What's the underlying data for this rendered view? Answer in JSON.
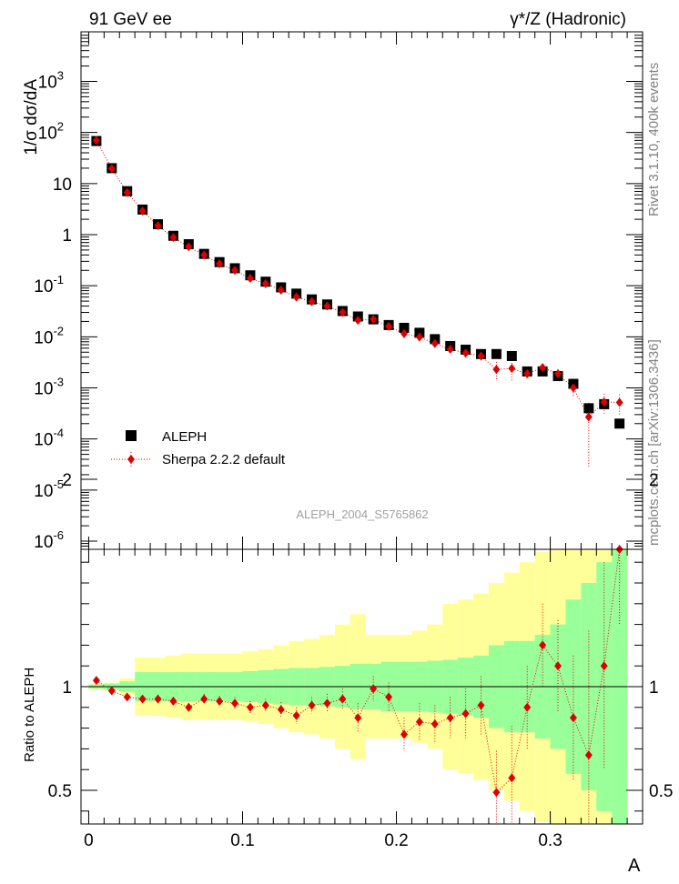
{
  "header": {
    "left": "91 GeV ee",
    "right": "γ*/Z (Hadronic)"
  },
  "side_text": {
    "top": "Rivet 3.1.10,  400k events",
    "bottom": "mcplots.cern.ch [arXiv:1306.3436]"
  },
  "watermark": "ALEPH_2004_S5765862",
  "legend": {
    "data_label": "ALEPH",
    "mc_label": "Sherpa 2.2.2 default"
  },
  "colors": {
    "data": "#000000",
    "mc": "#dd0000",
    "band_outer": "#ffff99",
    "band_inner": "#99ff99"
  },
  "chart_data": [
    {
      "type": "scatter",
      "panel": "main",
      "ylabel": "1/σ  dσ/dA",
      "yscale": "log",
      "ylim": [
        7e-07,
        10000.0
      ],
      "xlim": [
        -0.005,
        0.36
      ],
      "y_tick_labels": [
        "10^-6",
        "10^-5",
        "10^-4",
        "10^-3",
        "10^-2",
        "10^-1",
        "1",
        "10",
        "10^2",
        "10^3"
      ],
      "x": [
        0.005,
        0.015,
        0.025,
        0.035,
        0.045,
        0.055,
        0.065,
        0.075,
        0.085,
        0.095,
        0.105,
        0.115,
        0.125,
        0.135,
        0.145,
        0.155,
        0.165,
        0.175,
        0.185,
        0.195,
        0.205,
        0.215,
        0.225,
        0.235,
        0.245,
        0.255,
        0.265,
        0.275,
        0.285,
        0.295,
        0.305,
        0.315,
        0.325,
        0.335,
        0.345
      ],
      "series": [
        {
          "name": "ALEPH",
          "values": [
            68,
            20,
            7.1,
            3.1,
            1.6,
            0.95,
            0.65,
            0.42,
            0.29,
            0.22,
            0.16,
            0.12,
            0.093,
            0.07,
            0.054,
            0.043,
            0.032,
            0.025,
            0.022,
            0.017,
            0.015,
            0.012,
            0.009,
            0.0066,
            0.0056,
            0.0046,
            0.0046,
            0.0042,
            0.0021,
            0.0021,
            0.0017,
            0.0012,
            0.0004,
            0.00048,
            0.0002
          ]
        },
        {
          "name": "Sherpa 2.2.2 default",
          "values": [
            70,
            19.6,
            6.7,
            2.9,
            1.5,
            0.88,
            0.58,
            0.4,
            0.27,
            0.2,
            0.14,
            0.11,
            0.082,
            0.06,
            0.049,
            0.04,
            0.03,
            0.021,
            0.022,
            0.016,
            0.0115,
            0.0099,
            0.0074,
            0.0057,
            0.0048,
            0.0042,
            0.0023,
            0.0024,
            0.0019,
            0.0025,
            0.0019,
            0.001,
            0.00027,
            0.00053,
            0.00052
          ]
        }
      ]
    },
    {
      "type": "scatter",
      "panel": "ratio",
      "ylabel": "Ratio to ALEPH",
      "xlabel": "A",
      "ylim": [
        0.35,
        2.25
      ],
      "xlim": [
        -0.005,
        0.36
      ],
      "x_ticks": [
        0,
        0.1,
        0.2,
        0.3
      ],
      "x_tick_labels": [
        "0",
        "0.1",
        "0.2",
        "0.3"
      ],
      "y_ticks": [
        0.5,
        1,
        2
      ],
      "y_tick_labels": [
        "0.5",
        "1",
        "2"
      ],
      "x": [
        0.005,
        0.015,
        0.025,
        0.035,
        0.045,
        0.055,
        0.065,
        0.075,
        0.085,
        0.095,
        0.105,
        0.115,
        0.125,
        0.135,
        0.145,
        0.155,
        0.165,
        0.175,
        0.185,
        0.195,
        0.205,
        0.215,
        0.225,
        0.235,
        0.245,
        0.255,
        0.265,
        0.275,
        0.285,
        0.295,
        0.305,
        0.315,
        0.325,
        0.335,
        0.345
      ],
      "series": [
        {
          "name": "Sherpa 2.2.2 default",
          "values": [
            1.03,
            0.98,
            0.95,
            0.94,
            0.94,
            0.93,
            0.9,
            0.94,
            0.93,
            0.92,
            0.9,
            0.91,
            0.89,
            0.86,
            0.91,
            0.92,
            0.94,
            0.85,
            0.99,
            0.95,
            0.77,
            0.83,
            0.82,
            0.85,
            0.87,
            0.91,
            0.49,
            0.56,
            0.9,
            1.2,
            1.1,
            0.85,
            0.67,
            1.1,
            2.3
          ],
          "errors": [
            0.01,
            0.01,
            0.015,
            0.015,
            0.02,
            0.02,
            0.02,
            0.025,
            0.025,
            0.03,
            0.03,
            0.03,
            0.035,
            0.04,
            0.04,
            0.045,
            0.05,
            0.07,
            0.06,
            0.07,
            0.08,
            0.09,
            0.09,
            0.1,
            0.12,
            0.14,
            0.2,
            0.25,
            0.2,
            0.2,
            0.22,
            0.3,
            0.6,
            0.5,
            1.0
          ]
        }
      ],
      "band_inner": {
        "x_edges": [
          0,
          0.01,
          0.02,
          0.03,
          0.04,
          0.05,
          0.06,
          0.07,
          0.08,
          0.09,
          0.1,
          0.11,
          0.12,
          0.13,
          0.14,
          0.15,
          0.16,
          0.17,
          0.18,
          0.19,
          0.2,
          0.21,
          0.22,
          0.23,
          0.24,
          0.25,
          0.26,
          0.27,
          0.28,
          0.29,
          0.3,
          0.31,
          0.32,
          0.33,
          0.34,
          0.35
        ],
        "half_widths": [
          0.01,
          0.015,
          0.025,
          0.07,
          0.07,
          0.07,
          0.07,
          0.07,
          0.07,
          0.07,
          0.075,
          0.08,
          0.085,
          0.09,
          0.09,
          0.095,
          0.1,
          0.11,
          0.11,
          0.12,
          0.12,
          0.12,
          0.125,
          0.13,
          0.14,
          0.15,
          0.2,
          0.22,
          0.22,
          0.25,
          0.3,
          0.42,
          0.5,
          0.6,
          0.8
        ]
      },
      "band_outer": {
        "x_edges": [
          0,
          0.01,
          0.02,
          0.03,
          0.04,
          0.05,
          0.06,
          0.07,
          0.08,
          0.09,
          0.1,
          0.11,
          0.12,
          0.13,
          0.14,
          0.15,
          0.16,
          0.17,
          0.18,
          0.19,
          0.2,
          0.21,
          0.22,
          0.23,
          0.24,
          0.25,
          0.26,
          0.27,
          0.28,
          0.29,
          0.3,
          0.31,
          0.32,
          0.33,
          0.34,
          0.35
        ],
        "half_widths": [
          0.015,
          0.02,
          0.04,
          0.14,
          0.14,
          0.15,
          0.16,
          0.16,
          0.16,
          0.16,
          0.17,
          0.18,
          0.2,
          0.22,
          0.23,
          0.25,
          0.3,
          0.35,
          0.25,
          0.25,
          0.25,
          0.27,
          0.3,
          0.4,
          0.42,
          0.45,
          0.5,
          0.55,
          0.6,
          0.65,
          0.7,
          0.9,
          1.1,
          1.3,
          1.6
        ]
      }
    }
  ]
}
